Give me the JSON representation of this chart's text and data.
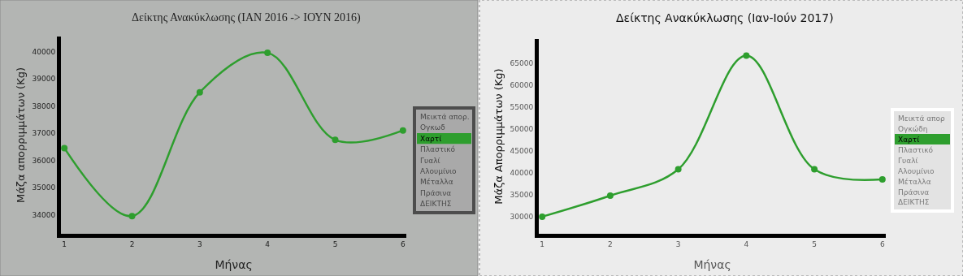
{
  "chart_data": [
    {
      "type": "line",
      "title": "Δείκτης Ανακύκλωσης (ΙΑΝ 2016 -> ΙΟΥΝ 2016)",
      "xlabel": "Μήνας",
      "ylabel": "Μάζα απορριμμάτων (Kg)",
      "x": [
        1,
        2,
        3,
        4,
        5,
        6
      ],
      "xlim": [
        0.95,
        6.05
      ],
      "xticks": [
        1,
        2,
        3,
        4,
        5,
        6
      ],
      "ylim": [
        33300,
        40550
      ],
      "yticks": [
        34000,
        35000,
        36000,
        37000,
        38000,
        39000,
        40000
      ],
      "series": [
        {
          "name": "Χαρτί",
          "color": "#2e9e2e",
          "values": [
            36450,
            33950,
            38500,
            39950,
            36750,
            37100
          ]
        }
      ],
      "marker": "circle",
      "legend": "right",
      "annotations": [
        "Μεικτά απορ.",
        "Ογκωδ",
        "Πλαστικό",
        "Γυαλί",
        "Αλουμίνιο",
        "Μέταλλα",
        "Πράσινα",
        "ΔΕΙΚΤΗΣ"
      ]
    },
    {
      "type": "line",
      "title": "Δείκτης Ανακύκλωσης (Ιαν-Ιούν 2017)",
      "xlabel": "Μήνας",
      "ylabel": "Μάζα Απορριμμάτων (Kg)",
      "x": [
        1,
        2,
        3,
        4,
        5,
        6
      ],
      "xlim": [
        0.95,
        6.05
      ],
      "xticks": [
        1,
        2,
        3,
        4,
        5,
        6
      ],
      "ylim": [
        26100,
        70500
      ],
      "yticks": [
        30000,
        35000,
        40000,
        45000,
        50000,
        55000,
        60000,
        65000
      ],
      "series": [
        {
          "name": "Χαρτί",
          "color": "#2e9e2e",
          "values": [
            30000,
            34800,
            40800,
            66700,
            40800,
            38500
          ]
        }
      ],
      "marker": "circle",
      "legend": "right",
      "annotations": [
        "Μεικτά απορ",
        "Ογκώδη",
        "Πλαστικό",
        "Γυαλί",
        "Αλουμίνιο",
        "Μέταλλα",
        "Πράσινα",
        "ΔΕΙΚΤΗΣ"
      ]
    }
  ]
}
